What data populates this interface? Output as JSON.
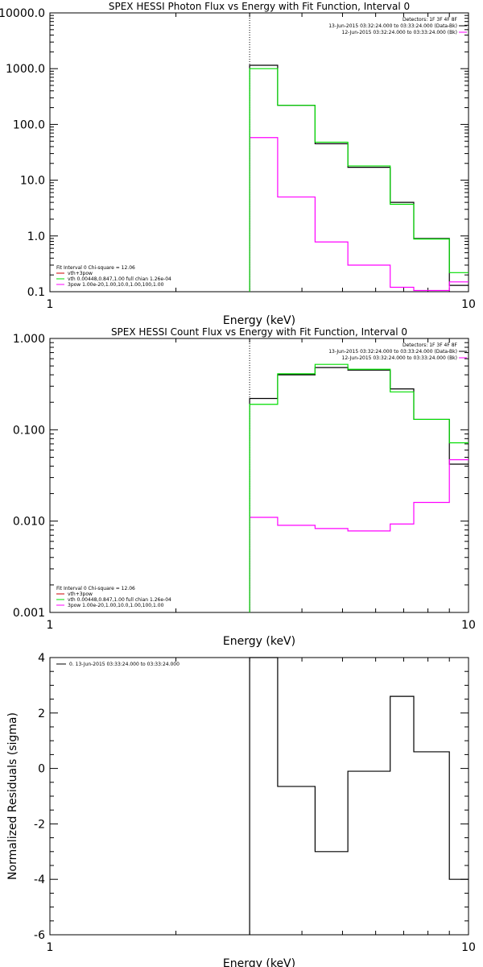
{
  "colors": {
    "background": "#ffffff",
    "axes": "#000000",
    "data": "#000000",
    "background_series": "#ff00ff",
    "model": "#00dd00",
    "total_model": "#cc0000"
  },
  "chart_data": [
    {
      "type": "line",
      "title": "SPEX HESSI Photon Flux vs Energy with Fit Function, Interval 0",
      "xlabel": "Energy (keV)",
      "ylabel": "",
      "xscale": "log",
      "yscale": "log",
      "xlim": [
        1,
        10
      ],
      "ylim": [
        0.1,
        10000
      ],
      "xticks": [
        "1",
        "10"
      ],
      "yticks": [
        "0.1",
        "1.0",
        "10.0",
        "100.0",
        "1000.0",
        "10000.0"
      ],
      "legend_top": [
        "Detectors: 1F 3F 4F 8F",
        "13-Jun-2015 03:32:24.000 to 03:33:24.000 (Data-Bk)",
        "12-Jun-2015 03:32:24.000 to 03:33:24.000 (Bk)"
      ],
      "legend_bottom": [
        "Fit Interval 0   Chi-square = 12.06",
        "vth+3pow",
        "vth 0.00448,0.847,1.00  full chian 1.26e-04",
        "3pow 1.00e-20,1.00,10.0,1.00,100,1.00"
      ],
      "edges": [
        3,
        3.5,
        4,
        4.5,
        5,
        5.5,
        6,
        6.5,
        7,
        7.5,
        8,
        9,
        10
      ],
      "series": [
        {
          "name": "Data-Bk",
          "values": [
            1150,
            220,
            45,
            17,
            4.0,
            0.9,
            0.13
          ]
        },
        {
          "name": "Bk",
          "values": [
            58,
            5.0,
            0.78,
            0.3,
            0.12,
            0.105,
            0.15
          ]
        },
        {
          "name": "vth 0.00448,0.847,1.00",
          "values": [
            1000,
            220,
            48,
            18,
            3.7,
            0.88,
            0.22
          ]
        }
      ]
    },
    {
      "type": "line",
      "title": "SPEX HESSI Count Flux vs Energy with Fit Function, Interval 0",
      "xlabel": "Energy (keV)",
      "ylabel": "",
      "xscale": "log",
      "yscale": "log",
      "xlim": [
        1,
        10
      ],
      "ylim": [
        0.001,
        1
      ],
      "xticks": [
        "1",
        "10"
      ],
      "yticks": [
        "0.001",
        "0.010",
        "0.100",
        "1.000"
      ],
      "legend_top": [
        "Detectors: 1F 3F 4F 8F",
        "13-Jun-2015 03:32:24.000 to 03:33:24.000 (Data-Bk)",
        "12-Jun-2015 03:32:24.000 to 03:33:24.000 (Bk)"
      ],
      "legend_bottom": [
        "Fit Interval 0   Chi-square = 12.06",
        "vth+3pow",
        "vth 0.00448,0.847,1.00  full chian 1.26e-04",
        "3pow 1.00e-20,1.00,10.0,1.00,100,1.00"
      ],
      "edges": [
        3,
        3.5,
        4,
        4.5,
        5,
        5.5,
        6,
        6.5,
        7,
        7.5,
        8,
        9,
        10
      ],
      "series": [
        {
          "name": "Data-Bk",
          "values": [
            0.22,
            0.4,
            0.48,
            0.45,
            0.28,
            0.13,
            0.042
          ]
        },
        {
          "name": "Bk",
          "values": [
            0.011,
            0.009,
            0.0083,
            0.0078,
            0.0093,
            0.016,
            0.047
          ]
        },
        {
          "name": "vth 0.00448,0.847,1.00",
          "values": [
            0.19,
            0.41,
            0.52,
            0.46,
            0.26,
            0.13,
            0.072
          ]
        }
      ]
    },
    {
      "type": "line",
      "title": "",
      "xlabel": "Energy (keV)",
      "ylabel": "Normalized Residuals (sigma)",
      "xscale": "log",
      "yscale": "linear",
      "xlim": [
        1,
        10
      ],
      "ylim": [
        -6,
        4
      ],
      "xticks": [
        "1",
        "10"
      ],
      "yticks": [
        "-6",
        "-4",
        "-2",
        "0",
        "2",
        "4"
      ],
      "legend_top": [
        "0. 13-Jun-2015 03:33:24.000 to 03:33:24.000"
      ],
      "edges": [
        3,
        3.5,
        4,
        4.5,
        5,
        5.5,
        6,
        6.5,
        7,
        7.5,
        8,
        9,
        10
      ],
      "series": [
        {
          "name": "0. 13-Jun-2015 03:33:24.000 to 03:33:24.000",
          "values": [
            4.0,
            -0.65,
            -3.0,
            -0.1,
            2.6,
            0.6,
            -4.0
          ]
        }
      ]
    }
  ]
}
